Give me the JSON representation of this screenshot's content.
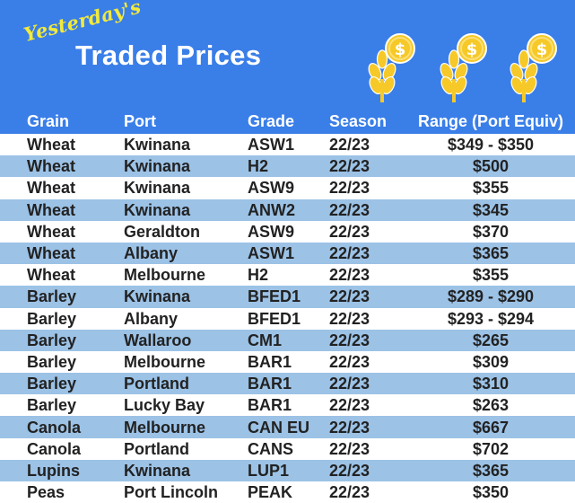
{
  "header": {
    "kicker": "Yesterday's",
    "title": "Traded Prices"
  },
  "table": {
    "columns": [
      "Grain",
      "Port",
      "Grade",
      "Season",
      "Range (Port Equiv)"
    ],
    "rows": [
      [
        "Wheat",
        "Kwinana",
        "ASW1",
        "22/23",
        "$349 - $350"
      ],
      [
        "Wheat",
        "Kwinana",
        "H2",
        "22/23",
        "$500"
      ],
      [
        "Wheat",
        "Kwinana",
        "ASW9",
        "22/23",
        "$355"
      ],
      [
        "Wheat",
        "Kwinana",
        "ANW2",
        "22/23",
        "$345"
      ],
      [
        "Wheat",
        "Geraldton",
        "ASW9",
        "22/23",
        "$370"
      ],
      [
        "Wheat",
        "Albany",
        "ASW1",
        "22/23",
        "$365"
      ],
      [
        "Wheat",
        "Melbourne",
        "H2",
        "22/23",
        "$355"
      ],
      [
        "Barley",
        "Kwinana",
        "BFED1",
        "22/23",
        "$289 - $290"
      ],
      [
        "Barley",
        "Albany",
        "BFED1",
        "22/23",
        "$293 - $294"
      ],
      [
        "Barley",
        "Wallaroo",
        "CM1",
        "22/23",
        "$265"
      ],
      [
        "Barley",
        "Melbourne",
        "BAR1",
        "22/23",
        "$309"
      ],
      [
        "Barley",
        "Portland",
        "BAR1",
        "22/23",
        "$310"
      ],
      [
        "Barley",
        "Lucky Bay",
        "BAR1",
        "22/23",
        "$263"
      ],
      [
        "Canola",
        "Melbourne",
        "CAN EU",
        "22/23",
        "$667"
      ],
      [
        "Canola",
        "Portland",
        "CANS",
        "22/23",
        "$702"
      ],
      [
        "Lupins",
        "Kwinana",
        "LUP1",
        "22/23",
        "$365"
      ],
      [
        "Peas",
        "Port Lincoln",
        "PEAK",
        "22/23",
        "$350"
      ]
    ]
  },
  "icons": [
    "wheat-coin-icon",
    "wheat-coin-icon",
    "wheat-coin-icon"
  ],
  "colors": {
    "banner": "#3a7ee8",
    "stripe": "#9cc2e6",
    "kicker": "#f2ea3a",
    "icon_gold": "#f6c928"
  }
}
